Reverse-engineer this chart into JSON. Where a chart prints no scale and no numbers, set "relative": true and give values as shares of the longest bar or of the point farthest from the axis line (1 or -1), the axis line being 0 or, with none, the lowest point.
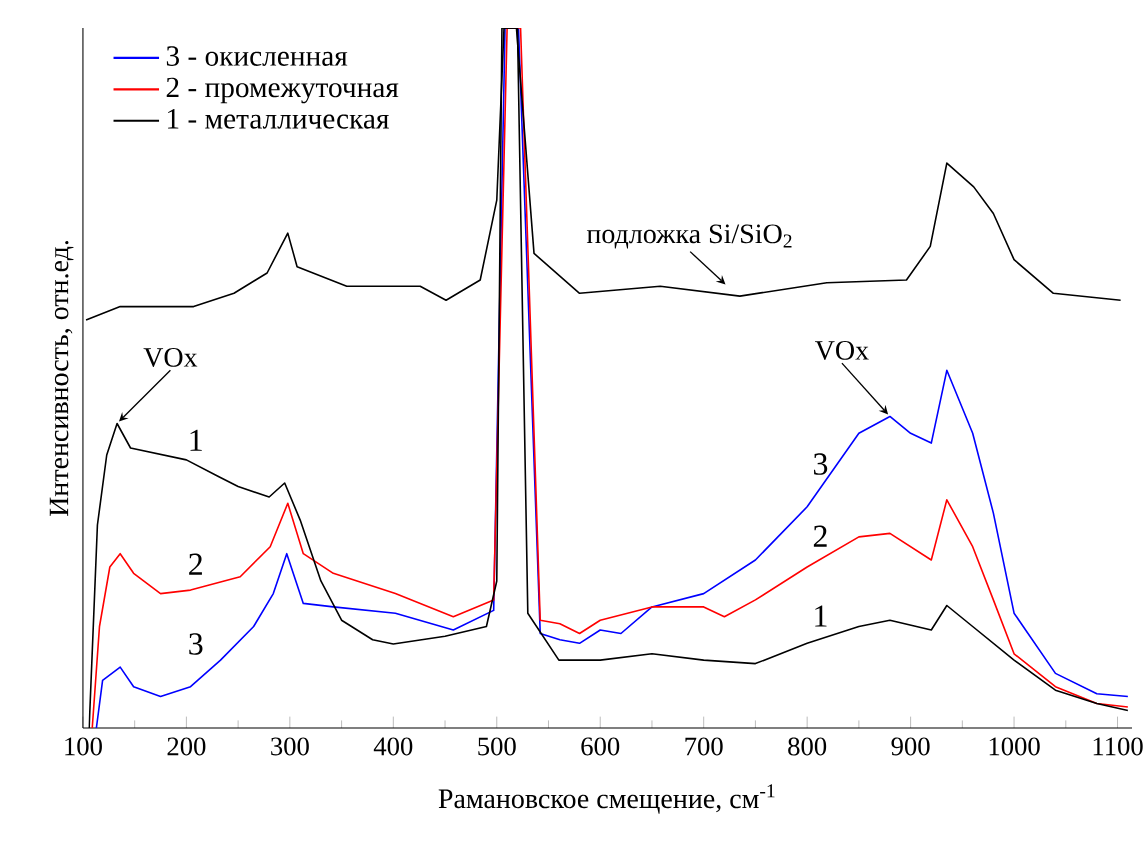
{
  "chart_data": {
    "type": "line",
    "relative": true,
    "xlabel": "Рамановское смещение, см$^{-1}$",
    "ylabel": "Интенсивность, отн.ед.",
    "xlim": [
      100,
      1114
    ],
    "xticks": [
      100,
      200,
      300,
      400,
      500,
      600,
      700,
      800,
      900,
      1000,
      1100
    ],
    "legend": "top left",
    "series": [
      {
        "name": "3 - окисленная",
        "color": "#0000ff",
        "x": [
          113,
          119,
          136,
          149,
          175,
          204,
          233,
          265,
          284,
          297,
          313,
          342,
          402,
          458,
          497,
          508,
          521,
          542,
          561,
          580,
          600,
          620,
          650,
          700,
          750,
          800,
          850,
          880,
          900,
          920,
          935,
          960,
          980,
          1000,
          1040,
          1080,
          1110
        ],
        "values": [
          0,
          0.068,
          0.087,
          0.059,
          0.045,
          0.059,
          0.097,
          0.145,
          0.192,
          0.249,
          0.178,
          0.173,
          0.164,
          0.14,
          0.168,
          1,
          1,
          0.135,
          0.126,
          0.121,
          0.14,
          0.135,
          0.173,
          0.192,
          0.24,
          0.316,
          0.421,
          0.445,
          0.421,
          0.407,
          0.511,
          0.421,
          0.307,
          0.164,
          0.078,
          0.049,
          0.045
        ]
      },
      {
        "name": "2 - промежуточная",
        "color": "#ff0000",
        "x": [
          109,
          116,
          126,
          136,
          149,
          175,
          204,
          252,
          281,
          298,
          313,
          342,
          402,
          458,
          497,
          510,
          523,
          542,
          561,
          580,
          600,
          650,
          700,
          720,
          750,
          800,
          850,
          880,
          920,
          935,
          960,
          980,
          1000,
          1040,
          1080,
          1110
        ],
        "values": [
          0,
          0.145,
          0.23,
          0.249,
          0.221,
          0.192,
          0.197,
          0.216,
          0.259,
          0.321,
          0.249,
          0.221,
          0.192,
          0.159,
          0.183,
          1,
          1,
          0.154,
          0.149,
          0.135,
          0.154,
          0.173,
          0.173,
          0.159,
          0.183,
          0.23,
          0.273,
          0.278,
          0.24,
          0.326,
          0.259,
          0.183,
          0.106,
          0.059,
          0.035,
          0.03
        ]
      },
      {
        "name": "1 - металлическая",
        "color": "#000000",
        "x": [
          106,
          114,
          123,
          133,
          146,
          200,
          230,
          250,
          280,
          295,
          310,
          330,
          350,
          380,
          400,
          450,
          490,
          500,
          505,
          520,
          530,
          560,
          600,
          650,
          700,
          750,
          800,
          850,
          880,
          920,
          935,
          960,
          1000,
          1040,
          1080,
          1110
        ],
        "values": [
          0,
          0.29,
          0.39,
          0.435,
          0.4,
          0.383,
          0.36,
          0.345,
          0.33,
          0.35,
          0.297,
          0.21,
          0.154,
          0.126,
          0.12,
          0.131,
          0.145,
          0.21,
          1,
          1,
          0.164,
          0.097,
          0.097,
          0.106,
          0.097,
          0.092,
          0.121,
          0.145,
          0.154,
          0.14,
          0.175,
          0.145,
          0.097,
          0.054,
          0.035,
          0.025
        ]
      },
      {
        "color": "#000000",
        "x": [
          103,
          136,
          207,
          246,
          278,
          298,
          307,
          355,
          426,
          451,
          484,
          500,
          507,
          519,
          536,
          580,
          658,
          735,
          819,
          896,
          919,
          935,
          961,
          980,
          1000,
          1038,
          1103
        ],
        "values": [
          0.583,
          0.602,
          0.602,
          0.621,
          0.65,
          0.707,
          0.659,
          0.631,
          0.631,
          0.611,
          0.64,
          0.754,
          1,
          1,
          0.678,
          0.621,
          0.631,
          0.617,
          0.636,
          0.64,
          0.688,
          0.807,
          0.773,
          0.735,
          0.669,
          0.621,
          0.611
        ]
      }
    ],
    "annotations": [
      "1",
      "2",
      "3",
      "3",
      "2",
      "1",
      {
        "text": "VOx",
        "x": 133,
        "y": 0.435
      },
      {
        "text": "VOx",
        "x": 880,
        "y": 0.445
      },
      {
        "text": "подложка Si/SiO$_{2}$",
        "x": 723,
        "y": 0.631
      }
    ]
  }
}
